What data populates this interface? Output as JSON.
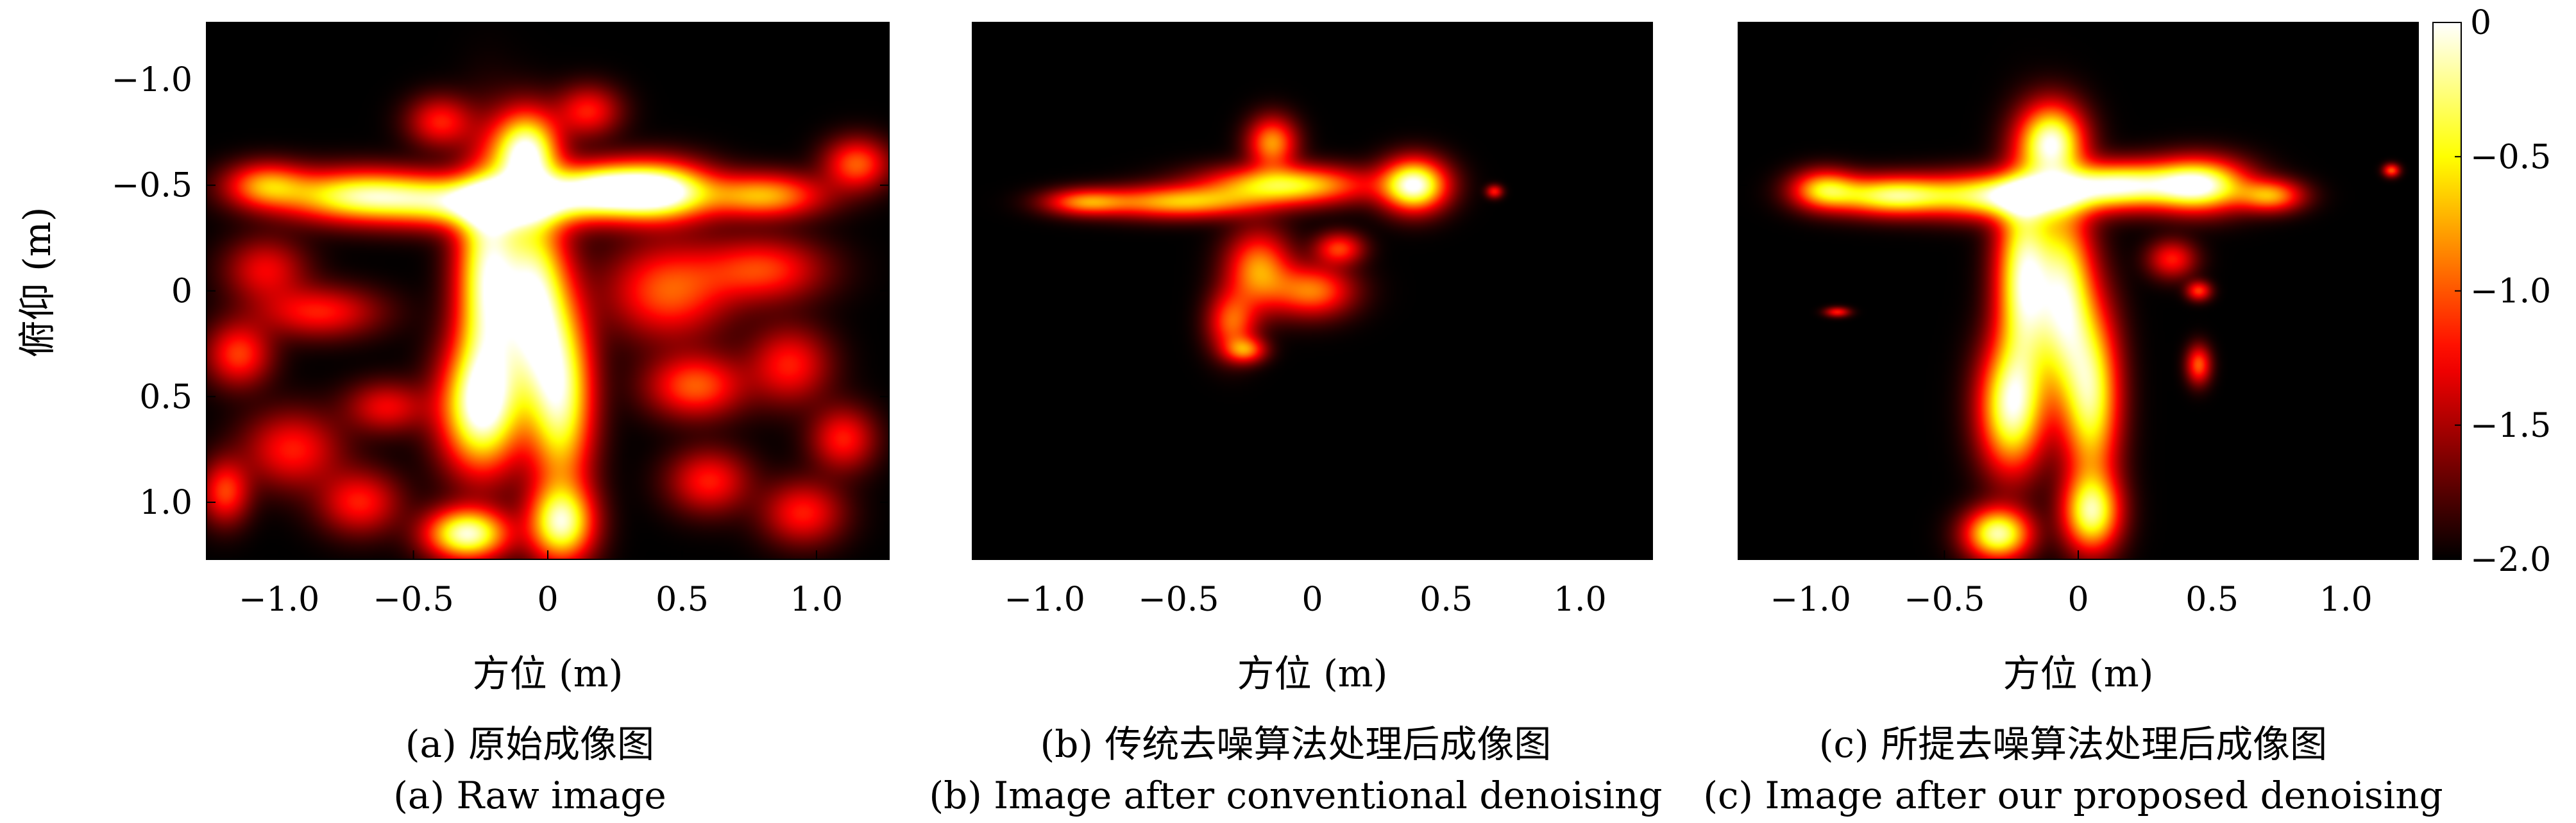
{
  "chart_data": {
    "type": "heatmap",
    "colormap": "hot",
    "colorbar": {
      "range": [
        -2.0,
        0
      ],
      "ticks": [
        "0",
        "−0.5",
        "−1.0",
        "−1.5",
        "−2.0"
      ],
      "tick_values": [
        0,
        -0.5,
        -1.0,
        -1.5,
        -2.0
      ]
    },
    "shared_ylabel": "俯仰 (m)",
    "y_ticks": [
      "−1.0",
      "−0.5",
      "0",
      "0.5",
      "1.0"
    ],
    "y_tick_values": [
      -1.0,
      -0.5,
      0,
      0.5,
      1.0
    ],
    "ylim": [
      1.27,
      -1.27
    ],
    "panels": [
      {
        "xlabel": "方位 (m)",
        "x_ticks": [
          "−1.0",
          "−0.5",
          "0",
          "0.5",
          "1.0"
        ],
        "x_tick_values": [
          -1.0,
          -0.5,
          0,
          0.5,
          1.0
        ],
        "xlim": [
          -1.27,
          1.27
        ],
        "caption_cn": "(a) 原始成像图",
        "caption_en": "(a) Raw image",
        "blobs": [
          {
            "x": -0.08,
            "y": -0.65,
            "sx": 0.08,
            "sy": 0.13,
            "a": 1.0
          },
          {
            "x": 0.42,
            "y": -0.47,
            "sx": 0.13,
            "sy": 0.09,
            "a": 1.0
          },
          {
            "x": 0.2,
            "y": -0.48,
            "sx": 0.14,
            "sy": 0.08,
            "a": 0.9
          },
          {
            "x": -0.2,
            "y": -0.42,
            "sx": 0.25,
            "sy": 0.08,
            "a": 0.95
          },
          {
            "x": -0.7,
            "y": -0.45,
            "sx": 0.2,
            "sy": 0.08,
            "a": 0.8
          },
          {
            "x": -1.05,
            "y": -0.5,
            "sx": 0.1,
            "sy": 0.07,
            "a": 0.5
          },
          {
            "x": 0.8,
            "y": -0.45,
            "sx": 0.15,
            "sy": 0.07,
            "a": 0.6
          },
          {
            "x": 1.15,
            "y": -0.6,
            "sx": 0.08,
            "sy": 0.08,
            "a": 0.45
          },
          {
            "x": -0.22,
            "y": -0.05,
            "sx": 0.08,
            "sy": 0.35,
            "a": 0.95
          },
          {
            "x": -0.05,
            "y": 0.05,
            "sx": 0.08,
            "sy": 0.3,
            "a": 0.9
          },
          {
            "x": -0.25,
            "y": 0.55,
            "sx": 0.1,
            "sy": 0.2,
            "a": 0.95
          },
          {
            "x": 0.05,
            "y": 0.5,
            "sx": 0.08,
            "sy": 0.3,
            "a": 0.85
          },
          {
            "x": -0.3,
            "y": 1.15,
            "sx": 0.1,
            "sy": 0.08,
            "a": 0.95
          },
          {
            "x": 0.05,
            "y": 1.1,
            "sx": 0.08,
            "sy": 0.12,
            "a": 0.85
          },
          {
            "x": -0.85,
            "y": 0.1,
            "sx": 0.15,
            "sy": 0.08,
            "a": 0.35
          },
          {
            "x": -1.15,
            "y": 0.3,
            "sx": 0.08,
            "sy": 0.1,
            "a": 0.4
          },
          {
            "x": -0.95,
            "y": 0.75,
            "sx": 0.12,
            "sy": 0.12,
            "a": 0.35
          },
          {
            "x": -1.2,
            "y": 0.95,
            "sx": 0.06,
            "sy": 0.1,
            "a": 0.4
          },
          {
            "x": -0.6,
            "y": 0.55,
            "sx": 0.1,
            "sy": 0.08,
            "a": 0.3
          },
          {
            "x": -0.7,
            "y": 1.0,
            "sx": 0.1,
            "sy": 0.1,
            "a": 0.35
          },
          {
            "x": 0.45,
            "y": 0.0,
            "sx": 0.15,
            "sy": 0.15,
            "a": 0.45
          },
          {
            "x": 0.8,
            "y": -0.1,
            "sx": 0.15,
            "sy": 0.1,
            "a": 0.4
          },
          {
            "x": 0.55,
            "y": 0.45,
            "sx": 0.12,
            "sy": 0.1,
            "a": 0.45
          },
          {
            "x": 0.9,
            "y": 0.35,
            "sx": 0.1,
            "sy": 0.12,
            "a": 0.35
          },
          {
            "x": 1.1,
            "y": 0.7,
            "sx": 0.08,
            "sy": 0.1,
            "a": 0.35
          },
          {
            "x": 0.6,
            "y": 0.9,
            "sx": 0.1,
            "sy": 0.1,
            "a": 0.35
          },
          {
            "x": 0.95,
            "y": 1.05,
            "sx": 0.1,
            "sy": 0.1,
            "a": 0.35
          },
          {
            "x": -0.4,
            "y": -0.8,
            "sx": 0.08,
            "sy": 0.08,
            "a": 0.35
          },
          {
            "x": 0.15,
            "y": -0.85,
            "sx": 0.08,
            "sy": 0.08,
            "a": 0.35
          },
          {
            "x": -1.05,
            "y": -0.1,
            "sx": 0.1,
            "sy": 0.1,
            "a": 0.3
          }
        ]
      },
      {
        "xlabel": "方位 (m)",
        "x_ticks": [
          "−1.0",
          "−0.5",
          "0",
          "0.5",
          "1.0"
        ],
        "x_tick_values": [
          -1.0,
          -0.5,
          0,
          0.5,
          1.0
        ],
        "xlim": [
          -1.27,
          1.27
        ],
        "caption_cn": "(b) 传统去噪算法处理后成像图",
        "caption_en": "(b) Image after conventional denoising",
        "blobs": [
          {
            "x": 0.38,
            "y": -0.5,
            "sx": 0.08,
            "sy": 0.08,
            "a": 1.0
          },
          {
            "x": -0.1,
            "y": -0.5,
            "sx": 0.2,
            "sy": 0.06,
            "a": 0.75
          },
          {
            "x": -0.5,
            "y": -0.42,
            "sx": 0.2,
            "sy": 0.05,
            "a": 0.6
          },
          {
            "x": -0.85,
            "y": -0.42,
            "sx": 0.1,
            "sy": 0.04,
            "a": 0.45
          },
          {
            "x": -0.15,
            "y": -0.7,
            "sx": 0.06,
            "sy": 0.08,
            "a": 0.55
          },
          {
            "x": -0.2,
            "y": -0.1,
            "sx": 0.08,
            "sy": 0.12,
            "a": 0.55
          },
          {
            "x": 0.0,
            "y": 0.0,
            "sx": 0.1,
            "sy": 0.08,
            "a": 0.5
          },
          {
            "x": -0.3,
            "y": 0.15,
            "sx": 0.06,
            "sy": 0.1,
            "a": 0.45
          },
          {
            "x": -0.25,
            "y": 0.28,
            "sx": 0.05,
            "sy": 0.04,
            "a": 0.45
          },
          {
            "x": 0.1,
            "y": -0.2,
            "sx": 0.06,
            "sy": 0.05,
            "a": 0.4
          },
          {
            "x": 0.68,
            "y": -0.47,
            "sx": 0.02,
            "sy": 0.02,
            "a": 0.35
          }
        ]
      },
      {
        "xlabel": "方位 (m)",
        "x_ticks": [
          "−1.0",
          "−0.5",
          "0",
          "0.5",
          "1.0"
        ],
        "x_tick_values": [
          -1.0,
          -0.5,
          0,
          0.5,
          1.0
        ],
        "xlim": [
          -1.27,
          1.27
        ],
        "caption_cn": "(c) 所提去噪算法处理后成像图",
        "caption_en": "(c) Image after our proposed denoising",
        "blobs": [
          {
            "x": -0.1,
            "y": -0.7,
            "sx": 0.08,
            "sy": 0.12,
            "a": 0.95
          },
          {
            "x": 0.45,
            "y": -0.5,
            "sx": 0.12,
            "sy": 0.08,
            "a": 1.0
          },
          {
            "x": 0.15,
            "y": -0.5,
            "sx": 0.15,
            "sy": 0.07,
            "a": 0.9
          },
          {
            "x": -0.25,
            "y": -0.45,
            "sx": 0.2,
            "sy": 0.07,
            "a": 0.95
          },
          {
            "x": -0.7,
            "y": -0.45,
            "sx": 0.15,
            "sy": 0.06,
            "a": 0.8
          },
          {
            "x": -0.95,
            "y": -0.48,
            "sx": 0.08,
            "sy": 0.06,
            "a": 0.6
          },
          {
            "x": 0.72,
            "y": -0.45,
            "sx": 0.08,
            "sy": 0.05,
            "a": 0.55
          },
          {
            "x": -0.2,
            "y": -0.05,
            "sx": 0.07,
            "sy": 0.3,
            "a": 0.95
          },
          {
            "x": -0.05,
            "y": 0.05,
            "sx": 0.07,
            "sy": 0.3,
            "a": 0.85
          },
          {
            "x": -0.25,
            "y": 0.55,
            "sx": 0.08,
            "sy": 0.2,
            "a": 0.9
          },
          {
            "x": 0.05,
            "y": 0.5,
            "sx": 0.07,
            "sy": 0.28,
            "a": 0.8
          },
          {
            "x": -0.3,
            "y": 1.15,
            "sx": 0.08,
            "sy": 0.08,
            "a": 0.9
          },
          {
            "x": 0.05,
            "y": 1.05,
            "sx": 0.07,
            "sy": 0.12,
            "a": 0.8
          },
          {
            "x": 0.35,
            "y": -0.15,
            "sx": 0.06,
            "sy": 0.06,
            "a": 0.35
          },
          {
            "x": 0.45,
            "y": 0.0,
            "sx": 0.03,
            "sy": 0.03,
            "a": 0.4
          },
          {
            "x": 0.45,
            "y": 0.35,
            "sx": 0.03,
            "sy": 0.06,
            "a": 0.45
          },
          {
            "x": 1.17,
            "y": -0.57,
            "sx": 0.02,
            "sy": 0.02,
            "a": 0.45
          },
          {
            "x": -0.9,
            "y": 0.1,
            "sx": 0.03,
            "sy": 0.015,
            "a": 0.35
          }
        ]
      }
    ]
  }
}
